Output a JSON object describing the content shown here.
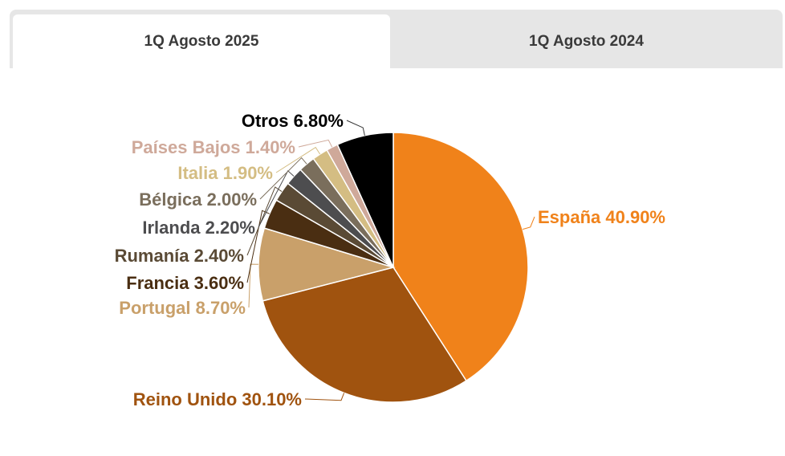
{
  "tabs": [
    {
      "label": "1Q Agosto 2025",
      "active": true
    },
    {
      "label": "1Q Agosto 2024",
      "active": false
    }
  ],
  "chart_data": {
    "type": "pie",
    "start": "top",
    "direction": "clockwise",
    "slices": [
      {
        "name": "España",
        "value": 40.9,
        "label": "España 40.90%",
        "color": "#f0821a"
      },
      {
        "name": "Reino Unido",
        "value": 30.1,
        "label": "Reino Unido 30.10%",
        "color": "#a0530f"
      },
      {
        "name": "Portugal",
        "value": 8.7,
        "label": "Portugal 8.70%",
        "color": "#c9a06a"
      },
      {
        "name": "Francia",
        "value": 3.6,
        "label": "Francia 3.60%",
        "color": "#4a2e12"
      },
      {
        "name": "Rumanía",
        "value": 2.4,
        "label": "Rumanía 2.40%",
        "color": "#5a4a35"
      },
      {
        "name": "Irlanda",
        "value": 2.2,
        "label": "Irlanda 2.20%",
        "color": "#4d4d4f"
      },
      {
        "name": "Bélgica",
        "value": 2.0,
        "label": "Bélgica 2.00%",
        "color": "#7a6e5c"
      },
      {
        "name": "Italia",
        "value": 1.9,
        "label": "Italia 1.90%",
        "color": "#d4bd83"
      },
      {
        "name": "Países Bajos",
        "value": 1.4,
        "label": "Países Bajos 1.40%",
        "color": "#cfa99a"
      },
      {
        "name": "Otros",
        "value": 6.8,
        "label": "Otros 6.80%",
        "color": "#000000"
      }
    ]
  }
}
